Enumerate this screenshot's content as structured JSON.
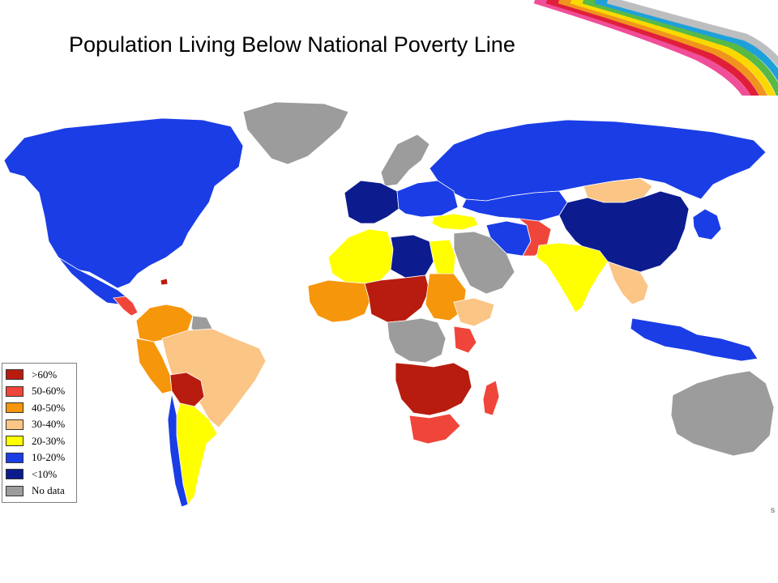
{
  "slide": {
    "title": "Population Living Below National Poverty Line",
    "source_mark": "s"
  },
  "colors": {
    "gt60": "#b81c0e",
    "p50_60": "#f0453a",
    "p40_50": "#f6960b",
    "p30_40": "#fbc585",
    "p20_30": "#ffff00",
    "p10_20": "#1a3de6",
    "lt10": "#0c1c8e",
    "nodata": "#9c9c9c",
    "ocean": "#ffffff",
    "swoosh": [
      "#f04e98",
      "#e01e3c",
      "#f0941e",
      "#fbd900",
      "#58b947",
      "#1ea0db",
      "#bcbec0"
    ]
  },
  "legend": {
    "items": [
      {
        "label": ">60%",
        "color": "#b81c0e"
      },
      {
        "label": "50-60%",
        "color": "#f0453a"
      },
      {
        "label": "40-50%",
        "color": "#f6960b"
      },
      {
        "label": "30-40%",
        "color": "#fbc585"
      },
      {
        "label": "20-30%",
        "color": "#ffff00"
      },
      {
        "label": "10-20%",
        "color": "#1a3de6"
      },
      {
        "label": "<10%",
        "color": "#0c1c8e"
      },
      {
        "label": "No data",
        "color": "#9c9c9c"
      }
    ]
  },
  "regions": [
    {
      "name": "greenland",
      "category": "No data"
    },
    {
      "name": "north-america",
      "category": "10-20%"
    },
    {
      "name": "mexico",
      "category": "10-20%"
    },
    {
      "name": "central-america",
      "category": "50-60%"
    },
    {
      "name": "haiti",
      "category": ">60%"
    },
    {
      "name": "colombia-venezuela",
      "category": "40-50%"
    },
    {
      "name": "guianas",
      "category": "No data"
    },
    {
      "name": "brazil",
      "category": "30-40%"
    },
    {
      "name": "peru",
      "category": "40-50%"
    },
    {
      "name": "bolivia",
      "category": ">60%"
    },
    {
      "name": "argentina",
      "category": "20-30%"
    },
    {
      "name": "chile",
      "category": "10-20%"
    },
    {
      "name": "russia",
      "category": "10-20%"
    },
    {
      "name": "scandinavia",
      "category": "No data"
    },
    {
      "name": "western-europe",
      "category": "<10%"
    },
    {
      "name": "eastern-europe",
      "category": "10-20%"
    },
    {
      "name": "turkey",
      "category": "20-30%"
    },
    {
      "name": "kazakhstan",
      "category": "10-20%"
    },
    {
      "name": "mongolia",
      "category": "30-40%"
    },
    {
      "name": "china",
      "category": "<10%"
    },
    {
      "name": "korea-japan",
      "category": "10-20%"
    },
    {
      "name": "middle-east",
      "category": "No data"
    },
    {
      "name": "iran",
      "category": "10-20%"
    },
    {
      "name": "afghanistan-pakistan",
      "category": "50-60%"
    },
    {
      "name": "india",
      "category": "20-30%"
    },
    {
      "name": "southeast-asia",
      "category": "30-40%"
    },
    {
      "name": "indonesia",
      "category": "10-20%"
    },
    {
      "name": "australia",
      "category": "No data"
    },
    {
      "name": "north-africa",
      "category": "20-30%"
    },
    {
      "name": "libya",
      "category": "<10%"
    },
    {
      "name": "egypt",
      "category": "20-30%"
    },
    {
      "name": "west-africa",
      "category": "40-50%"
    },
    {
      "name": "sahel",
      "category": ">60%"
    },
    {
      "name": "sudan",
      "category": "40-50%"
    },
    {
      "name": "ethiopia",
      "category": "30-40%"
    },
    {
      "name": "central-africa",
      "category": "No data"
    },
    {
      "name": "kenya",
      "category": "50-60%"
    },
    {
      "name": "southern-africa",
      "category": ">60%"
    },
    {
      "name": "south-africa",
      "category": "50-60%"
    },
    {
      "name": "madagascar",
      "category": "50-60%"
    }
  ]
}
